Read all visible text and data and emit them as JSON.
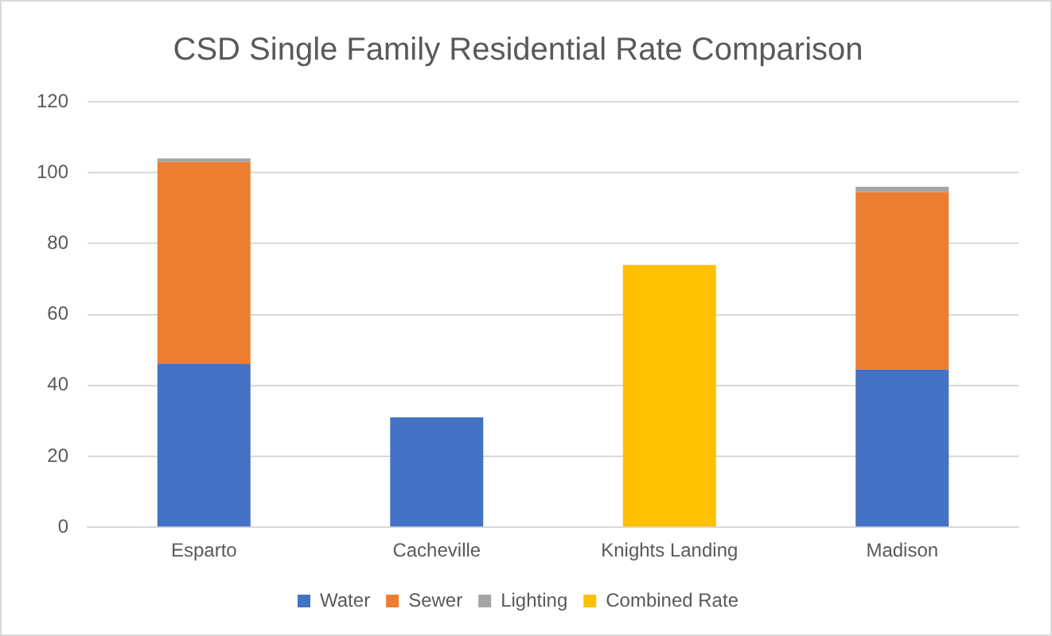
{
  "chart_data": {
    "type": "bar",
    "title": "CSD Single Family Residential Rate Comparison",
    "categories": [
      "Esparto",
      "Cacheville",
      "Knights Landing",
      "Madison"
    ],
    "stacked": true,
    "series": [
      {
        "name": "Water",
        "color": "#4472c4",
        "values": [
          46,
          31,
          null,
          44.5
        ]
      },
      {
        "name": "Sewer",
        "color": "#ed7d31",
        "values": [
          57,
          null,
          null,
          50
        ]
      },
      {
        "name": "Lighting",
        "color": "#a5a5a5",
        "values": [
          1,
          null,
          null,
          1.5
        ]
      },
      {
        "name": "Combined Rate",
        "color": "#ffc000",
        "values": [
          null,
          null,
          74,
          null
        ]
      }
    ],
    "ylim": [
      0,
      120
    ],
    "yticks": [
      0,
      20,
      40,
      60,
      80,
      100,
      120
    ],
    "grid": "y",
    "legend": "bottom"
  }
}
